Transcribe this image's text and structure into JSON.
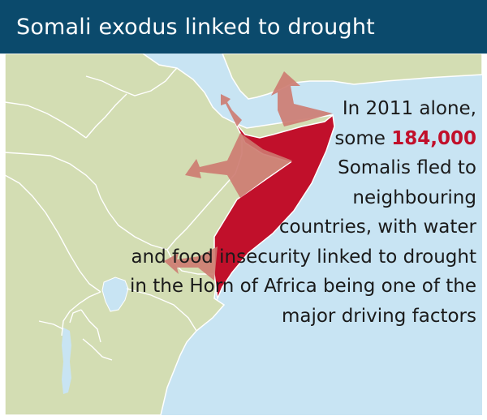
{
  "title": "Somali exodus linked to drought",
  "colors": {
    "header_bg": "#0b4a6c",
    "sea": "#c8e4f3",
    "land": "#d3ddb3",
    "somalia": "#c1102b",
    "arrow": "#cd7a70",
    "highlight": "#c1102b"
  },
  "caption": {
    "line1": "In 2011 alone,",
    "line2_prefix": "some ",
    "highlight": "184,000",
    "line3": "Somalis fled to",
    "line4": "neighbouring",
    "line5": "countries, with water",
    "line6": "and food insecurity linked to drought",
    "line7": "in the Horn of Africa being one of the",
    "line8": "major driving factors"
  },
  "map": {
    "highlighted_country": "Somalia",
    "arrows": [
      {
        "name": "to-yemen",
        "direction": "north"
      },
      {
        "name": "to-djibouti",
        "direction": "north-west"
      },
      {
        "name": "to-ethiopia",
        "direction": "west"
      },
      {
        "name": "to-kenya",
        "direction": "south-west"
      }
    ]
  }
}
